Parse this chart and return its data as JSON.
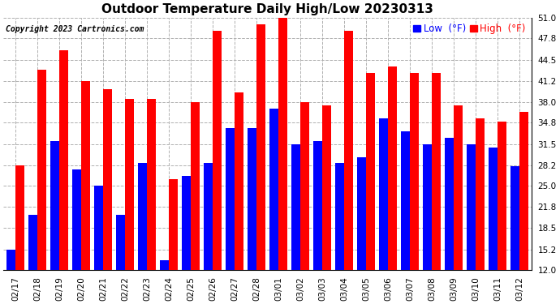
{
  "title": "Outdoor Temperature Daily High/Low 20230313",
  "copyright": "Copyright 2023 Cartronics.com",
  "dates": [
    "02/17",
    "02/18",
    "02/19",
    "02/20",
    "02/21",
    "02/22",
    "02/23",
    "02/24",
    "02/25",
    "02/26",
    "02/27",
    "02/28",
    "03/01",
    "03/02",
    "03/03",
    "03/04",
    "03/05",
    "03/06",
    "03/07",
    "03/08",
    "03/09",
    "03/10",
    "03/11",
    "03/12"
  ],
  "highs": [
    28.2,
    43.0,
    46.0,
    41.2,
    40.0,
    38.5,
    38.5,
    26.0,
    38.0,
    49.0,
    39.5,
    50.0,
    51.0,
    38.0,
    37.5,
    49.0,
    42.5,
    43.5,
    42.5,
    42.5,
    37.5,
    35.5,
    35.0,
    36.5
  ],
  "lows": [
    15.2,
    20.5,
    32.0,
    27.5,
    25.0,
    20.5,
    28.5,
    13.5,
    26.5,
    28.5,
    34.0,
    34.0,
    37.0,
    31.5,
    32.0,
    28.5,
    29.5,
    35.5,
    33.5,
    31.5,
    32.5,
    31.5,
    31.0,
    28.0
  ],
  "high_color": "#ff0000",
  "low_color": "#0000ff",
  "background_color": "#ffffff",
  "grid_color": "#b0b0b0",
  "ylim_min": 12.0,
  "ylim_max": 51.0,
  "yticks": [
    12.0,
    15.2,
    18.5,
    21.8,
    25.0,
    28.2,
    31.5,
    34.8,
    38.0,
    41.2,
    44.5,
    47.8,
    51.0
  ],
  "title_fontsize": 11,
  "copyright_fontsize": 7,
  "tick_fontsize": 7.5,
  "legend_fontsize": 8.5,
  "bar_width": 0.42
}
